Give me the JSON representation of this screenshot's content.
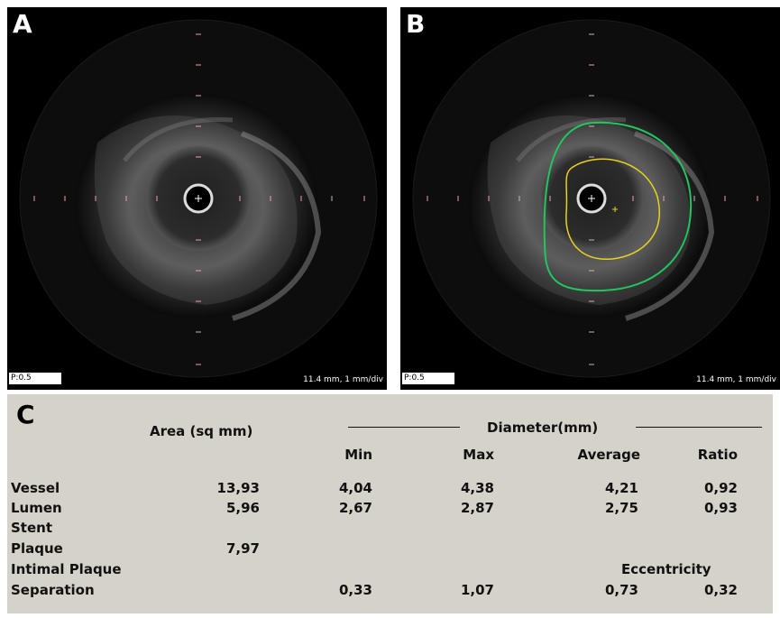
{
  "panel_a": {
    "letter": "A",
    "p_label": "P:0.5",
    "scale": "11.4 mm, 1 mm/div"
  },
  "panel_b": {
    "letter": "B",
    "p_label": "P:0.5",
    "scale": "11.4 mm, 1 mm/div",
    "contour_colors": {
      "vessel": "#22c55e",
      "lumen": "#e8d21e"
    }
  },
  "table": {
    "letter": "C",
    "area_header": "Area (sq mm)",
    "diameter_header": "Diameter(mm)",
    "sub_headers": [
      "Min",
      "Max",
      "Average",
      "Ratio"
    ],
    "rows": [
      {
        "label": "Vessel",
        "area": "13,93",
        "min": "4,04",
        "max": "4,38",
        "avg": "4,21",
        "ratio": "0,92"
      },
      {
        "label": "Lumen",
        "area": "5,96",
        "min": "2,67",
        "max": "2,87",
        "avg": "2,75",
        "ratio": "0,93"
      },
      {
        "label": "Stent",
        "area": "",
        "min": "",
        "max": "",
        "avg": "",
        "ratio": ""
      },
      {
        "label": "Plaque",
        "area": "7,97",
        "min": "",
        "max": "",
        "avg": "",
        "ratio": ""
      },
      {
        "label": "Intimal Plaque",
        "area": "",
        "min": "",
        "max": "",
        "avg": "",
        "ratio": ""
      },
      {
        "label": "Separation",
        "area": "",
        "min": "0,33",
        "max": "1,07",
        "avg": "0,73",
        "ratio": "0,32"
      }
    ],
    "eccentricity_label": "Eccentricity"
  }
}
